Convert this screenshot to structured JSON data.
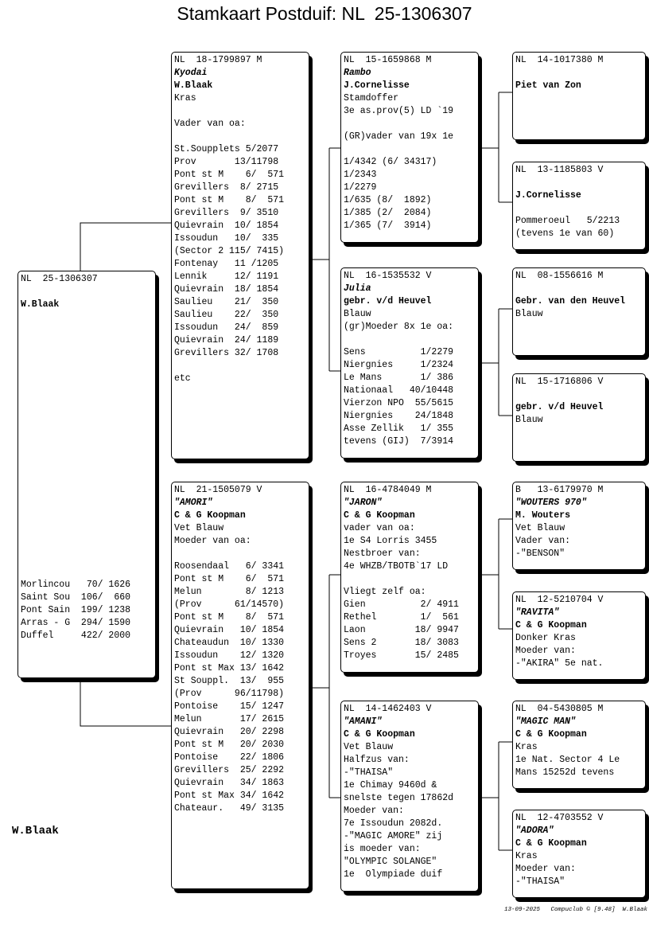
{
  "title": "Stamkaart Postduif: NL  25-1306307",
  "owner": "W.Blaak",
  "footer": "13-09-2025   Compuclub © [9.48]  W.Blaak",
  "pigeons": {
    "subject": [
      {
        "t": "NL  25-1306307",
        "s": ""
      },
      {
        "t": "",
        "s": ""
      },
      {
        "t": "W.Blaak",
        "s": "b"
      },
      {
        "t": "",
        "s": ""
      },
      {
        "t": "",
        "s": ""
      },
      {
        "t": "",
        "s": ""
      },
      {
        "t": "",
        "s": ""
      },
      {
        "t": "",
        "s": ""
      },
      {
        "t": "",
        "s": ""
      },
      {
        "t": "",
        "s": ""
      },
      {
        "t": "",
        "s": ""
      },
      {
        "t": "",
        "s": ""
      },
      {
        "t": "",
        "s": ""
      },
      {
        "t": "",
        "s": ""
      },
      {
        "t": "",
        "s": ""
      },
      {
        "t": "",
        "s": ""
      },
      {
        "t": "",
        "s": ""
      },
      {
        "t": "",
        "s": ""
      },
      {
        "t": "",
        "s": ""
      },
      {
        "t": "",
        "s": ""
      },
      {
        "t": "",
        "s": ""
      },
      {
        "t": "",
        "s": ""
      },
      {
        "t": "",
        "s": ""
      },
      {
        "t": "",
        "s": ""
      },
      {
        "t": "Morlincou   70/ 1626",
        "s": ""
      },
      {
        "t": "Saint Sou  106/  660",
        "s": ""
      },
      {
        "t": "Pont Sain  199/ 1238",
        "s": ""
      },
      {
        "t": "Arras - G  294/ 1590",
        "s": ""
      },
      {
        "t": "Duffel     422/ 2000",
        "s": ""
      }
    ],
    "father": [
      {
        "t": "NL  18-1799897 M",
        "s": ""
      },
      {
        "t": "Kyodai",
        "s": "i"
      },
      {
        "t": "W.Blaak",
        "s": "b"
      },
      {
        "t": "Kras",
        "s": ""
      },
      {
        "t": "",
        "s": ""
      },
      {
        "t": "Vader van oa:",
        "s": ""
      },
      {
        "t": "",
        "s": ""
      },
      {
        "t": "St.Soupplets 5/2077",
        "s": ""
      },
      {
        "t": "Prov       13/11798",
        "s": ""
      },
      {
        "t": "Pont st M    6/  571",
        "s": ""
      },
      {
        "t": "Grevillers  8/ 2715",
        "s": ""
      },
      {
        "t": "Pont st M    8/  571",
        "s": ""
      },
      {
        "t": "Grevillers  9/ 3510",
        "s": ""
      },
      {
        "t": "Quievrain  10/ 1854",
        "s": ""
      },
      {
        "t": "Issoudun   10/  335",
        "s": ""
      },
      {
        "t": "(Sector 2 115/ 7415)",
        "s": ""
      },
      {
        "t": "Fontenay   11 /1205",
        "s": ""
      },
      {
        "t": "Lennik     12/ 1191",
        "s": ""
      },
      {
        "t": "Quievrain  18/ 1854",
        "s": ""
      },
      {
        "t": "Saulieu    21/  350",
        "s": ""
      },
      {
        "t": "Saulieu    22/  350",
        "s": ""
      },
      {
        "t": "Issoudun   24/  859",
        "s": ""
      },
      {
        "t": "Quievrain  24/ 1189",
        "s": ""
      },
      {
        "t": "Grevillers 32/ 1708",
        "s": ""
      },
      {
        "t": "",
        "s": ""
      },
      {
        "t": "etc",
        "s": ""
      }
    ],
    "mother": [
      {
        "t": "NL  21-1505079 V",
        "s": ""
      },
      {
        "t": "\"AMORI\"",
        "s": "i"
      },
      {
        "t": "C & G Koopman",
        "s": "b"
      },
      {
        "t": "Vet Blauw",
        "s": ""
      },
      {
        "t": "Moeder van oa:",
        "s": ""
      },
      {
        "t": "",
        "s": ""
      },
      {
        "t": "Roosendaal   6/ 3341",
        "s": ""
      },
      {
        "t": "Pont st M    6/  571",
        "s": ""
      },
      {
        "t": "Melun        8/ 1213",
        "s": ""
      },
      {
        "t": "(Prov      61/14570)",
        "s": ""
      },
      {
        "t": "Pont st M    8/  571",
        "s": ""
      },
      {
        "t": "Quievrain   10/ 1854",
        "s": ""
      },
      {
        "t": "Chateaudun  10/ 1330",
        "s": ""
      },
      {
        "t": "Issoudun    12/ 1320",
        "s": ""
      },
      {
        "t": "Pont st Max 13/ 1642",
        "s": ""
      },
      {
        "t": "St Souppl.  13/  955",
        "s": ""
      },
      {
        "t": "(Prov      96/11798)",
        "s": ""
      },
      {
        "t": "Pontoise    15/ 1247",
        "s": ""
      },
      {
        "t": "Melun       17/ 2615",
        "s": ""
      },
      {
        "t": "Quievrain   20/ 2298",
        "s": ""
      },
      {
        "t": "Pont st M   20/ 2030",
        "s": ""
      },
      {
        "t": "Pontoise    22/ 1806",
        "s": ""
      },
      {
        "t": "Grevillers  25/ 2292",
        "s": ""
      },
      {
        "t": "Quievrain   34/ 1863",
        "s": ""
      },
      {
        "t": "Pont st Max 34/ 1642",
        "s": ""
      },
      {
        "t": "Chateaur.   49/ 3135",
        "s": ""
      }
    ],
    "ff": [
      {
        "t": "NL  15-1659868 M",
        "s": ""
      },
      {
        "t": "Rambo",
        "s": "i"
      },
      {
        "t": "J.Cornelisse",
        "s": "b"
      },
      {
        "t": "Stamdoffer",
        "s": ""
      },
      {
        "t": "3e as.prov(5) LD `19",
        "s": ""
      },
      {
        "t": "",
        "s": ""
      },
      {
        "t": "(GR)vader van 19x 1e",
        "s": ""
      },
      {
        "t": "",
        "s": ""
      },
      {
        "t": "1/4342 (6/ 34317)",
        "s": ""
      },
      {
        "t": "1/2343",
        "s": ""
      },
      {
        "t": "1/2279",
        "s": ""
      },
      {
        "t": "1/635 (8/  1892)",
        "s": ""
      },
      {
        "t": "1/385 (2/  2084)",
        "s": ""
      },
      {
        "t": "1/365 (7/  3914)",
        "s": ""
      }
    ],
    "fm": [
      {
        "t": "NL  16-1535532 V",
        "s": ""
      },
      {
        "t": "Julia",
        "s": "i"
      },
      {
        "t": "gebr. v/d Heuvel",
        "s": "b"
      },
      {
        "t": "Blauw",
        "s": ""
      },
      {
        "t": "(gr)Moeder 8x 1e oa:",
        "s": ""
      },
      {
        "t": "",
        "s": ""
      },
      {
        "t": "Sens          1/2279",
        "s": ""
      },
      {
        "t": "Niergnies     1/2324",
        "s": ""
      },
      {
        "t": "Le Mans       1/ 386",
        "s": ""
      },
      {
        "t": "Nationaal   40/10448",
        "s": ""
      },
      {
        "t": "Vierzon NPO  55/5615",
        "s": ""
      },
      {
        "t": "Niergnies    24/1848",
        "s": ""
      },
      {
        "t": "Asse Zellik   1/ 355",
        "s": ""
      },
      {
        "t": "tevens (GIJ)  7/3914",
        "s": ""
      }
    ],
    "mf": [
      {
        "t": "NL  16-4784049 M",
        "s": ""
      },
      {
        "t": "\"JARON\"",
        "s": "i"
      },
      {
        "t": "C & G Koopman",
        "s": "b"
      },
      {
        "t": "vader van oa:",
        "s": ""
      },
      {
        "t": "1e S4 Lorris 3455",
        "s": ""
      },
      {
        "t": "Nestbroer van:",
        "s": ""
      },
      {
        "t": "4e WHZB/TBOTB`17 LD",
        "s": ""
      },
      {
        "t": "",
        "s": ""
      },
      {
        "t": "Vliegt zelf oa:",
        "s": ""
      },
      {
        "t": "Gien          2/ 4911",
        "s": ""
      },
      {
        "t": "Rethel        1/  561",
        "s": ""
      },
      {
        "t": "Laon         18/ 9947",
        "s": ""
      },
      {
        "t": "Sens 2       18/ 3083",
        "s": ""
      },
      {
        "t": "Troyes       15/ 2485",
        "s": ""
      }
    ],
    "mm": [
      {
        "t": "NL  14-1462403 V",
        "s": ""
      },
      {
        "t": "\"AMANI\"",
        "s": "i"
      },
      {
        "t": "C & G Koopman",
        "s": "b"
      },
      {
        "t": "Vet Blauw",
        "s": ""
      },
      {
        "t": "Halfzus van:",
        "s": ""
      },
      {
        "t": "-\"THAISA\"",
        "s": ""
      },
      {
        "t": "1e Chimay 9460d &",
        "s": ""
      },
      {
        "t": "snelste tegen 17862d",
        "s": ""
      },
      {
        "t": "Moeder van:",
        "s": ""
      },
      {
        "t": "7e Issoudun 2082d.",
        "s": ""
      },
      {
        "t": "-\"MAGIC AMORE\" zij",
        "s": ""
      },
      {
        "t": "is moeder van:",
        "s": ""
      },
      {
        "t": "\"OLYMPIC SOLANGE\"",
        "s": ""
      },
      {
        "t": "1e  Olympiade duif",
        "s": ""
      }
    ],
    "fff": [
      {
        "t": "NL  14-1017380 M",
        "s": ""
      },
      {
        "t": "",
        "s": ""
      },
      {
        "t": "Piet van Zon",
        "s": "b"
      }
    ],
    "ffm": [
      {
        "t": "NL  13-1185803 V",
        "s": ""
      },
      {
        "t": "",
        "s": ""
      },
      {
        "t": "J.Cornelisse",
        "s": "b"
      },
      {
        "t": "",
        "s": ""
      },
      {
        "t": "Pommeroeul   5/2213",
        "s": ""
      },
      {
        "t": "(tevens 1e van 60)",
        "s": ""
      }
    ],
    "fmf": [
      {
        "t": "NL  08-1556616 M",
        "s": ""
      },
      {
        "t": "",
        "s": ""
      },
      {
        "t": "Gebr. van den Heuvel",
        "s": "b"
      },
      {
        "t": "Blauw",
        "s": ""
      }
    ],
    "fmm": [
      {
        "t": "NL  15-1716806 V",
        "s": ""
      },
      {
        "t": "",
        "s": ""
      },
      {
        "t": "gebr. v/d Heuvel",
        "s": "b"
      },
      {
        "t": "Blauw",
        "s": ""
      }
    ],
    "mff": [
      {
        "t": "B   13-6179970 M",
        "s": ""
      },
      {
        "t": "\"WOUTERS 970\"",
        "s": "i"
      },
      {
        "t": "M. Wouters",
        "s": "b"
      },
      {
        "t": "Vet Blauw",
        "s": ""
      },
      {
        "t": "Vader van:",
        "s": ""
      },
      {
        "t": "-\"BENSON\"",
        "s": ""
      }
    ],
    "mfm": [
      {
        "t": "NL  12-5210704 V",
        "s": ""
      },
      {
        "t": "\"RAVITA\"",
        "s": "i"
      },
      {
        "t": "C & G Koopman",
        "s": "b"
      },
      {
        "t": "Donker Kras",
        "s": ""
      },
      {
        "t": "Moeder van:",
        "s": ""
      },
      {
        "t": "-\"AKIRA\" 5e nat.",
        "s": ""
      }
    ],
    "mmf": [
      {
        "t": "NL  04-5430805 M",
        "s": ""
      },
      {
        "t": "\"MAGIC MAN\"",
        "s": "i"
      },
      {
        "t": "C & G Koopman",
        "s": "b"
      },
      {
        "t": "Kras",
        "s": ""
      },
      {
        "t": "1e Nat. Sector 4 Le",
        "s": ""
      },
      {
        "t": "Mans 15252d tevens",
        "s": ""
      }
    ],
    "mmm": [
      {
        "t": "NL  12-4703552 V",
        "s": ""
      },
      {
        "t": "\"ADORA\"",
        "s": "i"
      },
      {
        "t": "C & G Koopman",
        "s": "b"
      },
      {
        "t": "Kras",
        "s": ""
      },
      {
        "t": "Moeder van:",
        "s": ""
      },
      {
        "t": "-\"THAISA\"",
        "s": ""
      }
    ]
  }
}
